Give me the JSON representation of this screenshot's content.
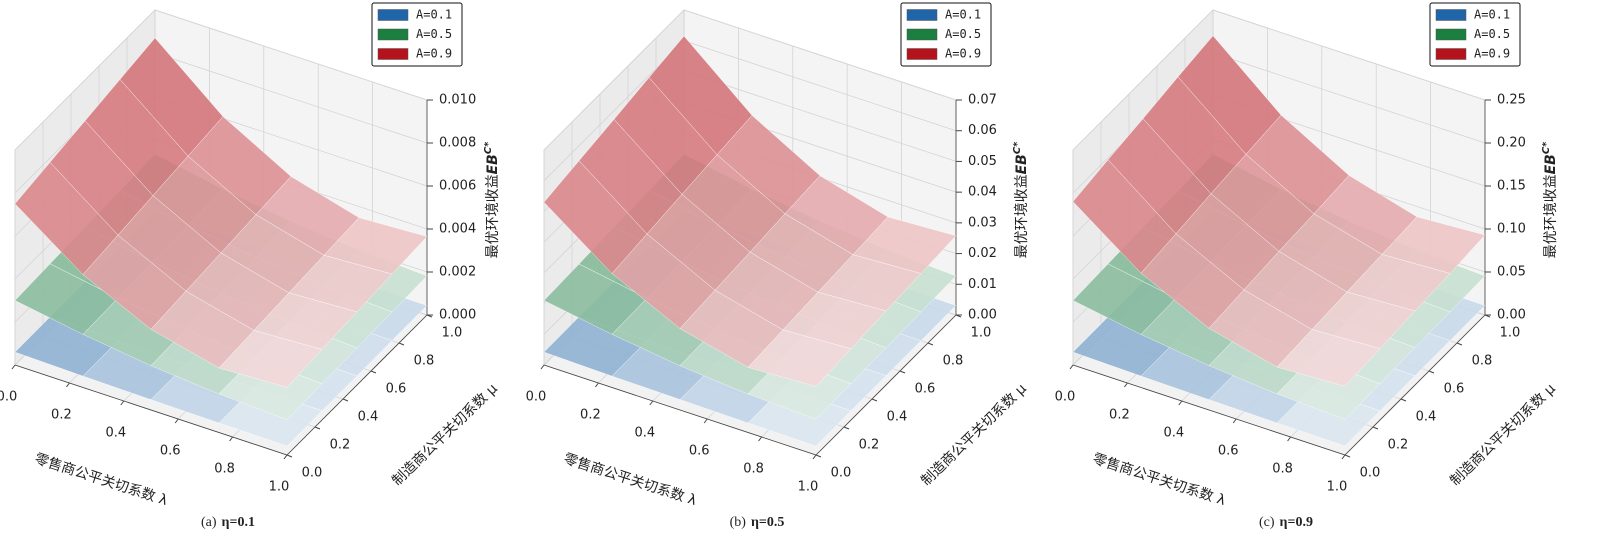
{
  "chart_data": [
    {
      "type": "surface3d",
      "caption_label": "(a)",
      "title": "η=0.1",
      "xlabel": "零售商公平关切系数 λ",
      "ylabel": "制造商公平关切系数 μ",
      "zlabel": [
        "最优环境收益",
        "EB",
        "C*"
      ],
      "x": [
        0,
        0.25,
        0.5,
        0.75,
        1
      ],
      "y": [
        0,
        0.25,
        0.5,
        0.75,
        1
      ],
      "xlim": [
        0,
        1
      ],
      "ylim": [
        0,
        1
      ],
      "zlim": [
        0,
        0.01
      ],
      "xticks": [
        {
          "value": 0,
          "label": "0.0"
        },
        0.2,
        0.4,
        0.6,
        0.8,
        {
          "value": 1,
          "label": "1.0"
        }
      ],
      "yticks": [
        {
          "value": 0,
          "label": "0.0"
        },
        0.2,
        0.4,
        0.6,
        0.8,
        {
          "value": 1,
          "label": "1.0"
        }
      ],
      "zticks": [
        {
          "value": 0,
          "label": "0.000"
        },
        {
          "value": 0.002,
          "label": "0.002"
        },
        {
          "value": 0.004,
          "label": "0.004"
        },
        {
          "value": 0.006,
          "label": "0.006"
        },
        {
          "value": 0.008,
          "label": "0.008"
        },
        {
          "value": 0.01,
          "label": "0.010"
        }
      ],
      "grid": true,
      "legend": "upper right",
      "series": [
        {
          "name": "A=0.1",
          "color": "#2065a8",
          "z": [
            [
              0.0006,
              0.00061,
              0.00062,
              0.00062,
              0.00063
            ],
            [
              0.00053,
              0.00054,
              0.00055,
              0.00055,
              0.00056
            ],
            [
              0.00048,
              0.00049,
              0.00049,
              0.0005,
              0.0005
            ],
            [
              0.00044,
              0.00045,
              0.00045,
              0.00046,
              0.00046
            ],
            [
              0.00042,
              0.00043,
              0.00043,
              0.00044,
              0.00044
            ]
          ]
        },
        {
          "name": "A=0.5",
          "color": "#1b7f3f",
          "z": [
            [
              0.003,
              0.00308,
              0.00315,
              0.00323,
              0.0033
            ],
            [
              0.00247,
              0.00253,
              0.00259,
              0.00265,
              0.00271
            ],
            [
              0.00206,
              0.00212,
              0.00217,
              0.00222,
              0.00227
            ],
            [
              0.00179,
              0.00184,
              0.00188,
              0.00193,
              0.00197
            ],
            [
              0.00165,
              0.00169,
              0.00173,
              0.00177,
              0.00182
            ]
          ]
        },
        {
          "name": "A=0.9",
          "color": "#b5121b",
          "z": [
            [
              0.0075,
              0.0078,
              0.0081,
              0.0084,
              0.0087
            ],
            [
              0.00525,
              0.00546,
              0.00567,
              0.00588,
              0.00609
            ],
            [
              0.00375,
              0.0039,
              0.00405,
              0.0042,
              0.00435
            ],
            [
              0.003,
              0.00312,
              0.00324,
              0.00336,
              0.00348
            ],
            [
              0.00315,
              0.00328,
              0.0034,
              0.00353,
              0.00365
            ]
          ]
        }
      ]
    },
    {
      "type": "surface3d",
      "caption_label": "(b)",
      "title": "η=0.5",
      "xlabel": "零售商公平关切系数 λ",
      "ylabel": "制造商公平关切系数 μ",
      "zlabel": [
        "最优环境收益",
        "EB",
        "C*"
      ],
      "x": [
        0,
        0.25,
        0.5,
        0.75,
        1
      ],
      "y": [
        0,
        0.25,
        0.5,
        0.75,
        1
      ],
      "xlim": [
        0,
        1
      ],
      "ylim": [
        0,
        1
      ],
      "zlim": [
        0,
        0.07
      ],
      "xticks": [
        {
          "value": 0,
          "label": "0.0"
        },
        0.2,
        0.4,
        0.6,
        0.8,
        {
          "value": 1,
          "label": "1.0"
        }
      ],
      "yticks": [
        {
          "value": 0,
          "label": "0.0"
        },
        0.2,
        0.4,
        0.6,
        0.8,
        {
          "value": 1,
          "label": "1.0"
        }
      ],
      "zticks": [
        {
          "value": 0,
          "label": "0.00"
        },
        0.01,
        0.02,
        0.03,
        0.04,
        0.05,
        0.06,
        0.07
      ],
      "grid": true,
      "legend": "upper right",
      "series": [
        {
          "name": "A=0.1",
          "color": "#2065a8",
          "z": [
            [
              0.0042,
              0.0043,
              0.0043,
              0.0044,
              0.0044
            ],
            [
              0.0037,
              0.0038,
              0.0038,
              0.0039,
              0.0039
            ],
            [
              0.0034,
              0.0034,
              0.0034,
              0.0035,
              0.0035
            ],
            [
              0.0031,
              0.0031,
              0.0032,
              0.0032,
              0.0033
            ],
            [
              0.0029,
              0.003,
              0.003,
              0.003,
              0.0031
            ]
          ]
        },
        {
          "name": "A=0.5",
          "color": "#1b7f3f",
          "z": [
            [
              0.021,
              0.0215,
              0.0221,
              0.0226,
              0.0231
            ],
            [
              0.0173,
              0.0177,
              0.0181,
              0.0186,
              0.019
            ],
            [
              0.0144,
              0.0148,
              0.0152,
              0.0155,
              0.0159
            ],
            [
              0.0125,
              0.0129,
              0.0132,
              0.0135,
              0.0138
            ],
            [
              0.0116,
              0.0118,
              0.0121,
              0.0124,
              0.0127
            ]
          ]
        },
        {
          "name": "A=0.9",
          "color": "#b5121b",
          "z": [
            [
              0.053,
              0.0551,
              0.0572,
              0.0594,
              0.0615
            ],
            [
              0.0371,
              0.0386,
              0.0401,
              0.0416,
              0.043
            ],
            [
              0.0265,
              0.0276,
              0.0286,
              0.0297,
              0.0307
            ],
            [
              0.0212,
              0.022,
              0.0229,
              0.0237,
              0.0246
            ],
            [
              0.0223,
              0.0232,
              0.0241,
              0.0249,
              0.0258
            ]
          ]
        }
      ]
    },
    {
      "type": "surface3d",
      "caption_label": "(c)",
      "title": "η=0.9",
      "xlabel": "零售商公平关切系数 λ",
      "ylabel": "制造商公平关切系数 μ",
      "zlabel": [
        "最优环境收益",
        "EB",
        "C*"
      ],
      "x": [
        0,
        0.25,
        0.5,
        0.75,
        1
      ],
      "y": [
        0,
        0.25,
        0.5,
        0.75,
        1
      ],
      "xlim": [
        0,
        1
      ],
      "ylim": [
        0,
        1
      ],
      "zlim": [
        0,
        0.25
      ],
      "xticks": [
        {
          "value": 0,
          "label": "0.0"
        },
        0.2,
        0.4,
        0.6,
        0.8,
        {
          "value": 1,
          "label": "1.0"
        }
      ],
      "yticks": [
        {
          "value": 0,
          "label": "0.0"
        },
        0.2,
        0.4,
        0.6,
        0.8,
        {
          "value": 1,
          "label": "1.0"
        }
      ],
      "zticks": [
        {
          "value": 0,
          "label": "0.00"
        },
        0.05,
        {
          "value": 0.1,
          "label": "0.10"
        },
        0.15,
        {
          "value": 0.2,
          "label": "0.20"
        },
        0.25
      ],
      "grid": true,
      "legend": "upper right",
      "series": [
        {
          "name": "A=0.1",
          "color": "#2065a8",
          "z": [
            [
              0.015,
              0.0152,
              0.0154,
              0.0156,
              0.0158
            ],
            [
              0.0133,
              0.0135,
              0.0137,
              0.0138,
              0.014
            ],
            [
              0.012,
              0.0122,
              0.0123,
              0.0125,
              0.0126
            ],
            [
              0.0111,
              0.0112,
              0.0113,
              0.0115,
              0.0116
            ],
            [
              0.0105,
              0.0106,
              0.0108,
              0.0109,
              0.011
            ]
          ]
        },
        {
          "name": "A=0.5",
          "color": "#1b7f3f",
          "z": [
            [
              0.075,
              0.0769,
              0.0788,
              0.0806,
              0.0825
            ],
            [
              0.0617,
              0.0632,
              0.0647,
              0.0663,
              0.0678
            ],
            [
              0.0516,
              0.0529,
              0.0542,
              0.0555,
              0.0568
            ],
            [
              0.0448,
              0.0459,
              0.047,
              0.0482,
              0.0493
            ],
            [
              0.0413,
              0.0423,
              0.0434,
              0.0443,
              0.0454
            ]
          ]
        },
        {
          "name": "A=0.9",
          "color": "#b5121b",
          "z": [
            [
              0.19,
              0.198,
              0.205,
              0.213,
              0.22
            ],
            [
              0.133,
              0.138,
              0.144,
              0.149,
              0.154
            ],
            [
              0.095,
              0.099,
              0.103,
              0.106,
              0.11
            ],
            [
              0.076,
              0.079,
              0.082,
              0.085,
              0.088
            ],
            [
              0.08,
              0.083,
              0.086,
              0.089,
              0.093
            ]
          ]
        }
      ]
    }
  ]
}
